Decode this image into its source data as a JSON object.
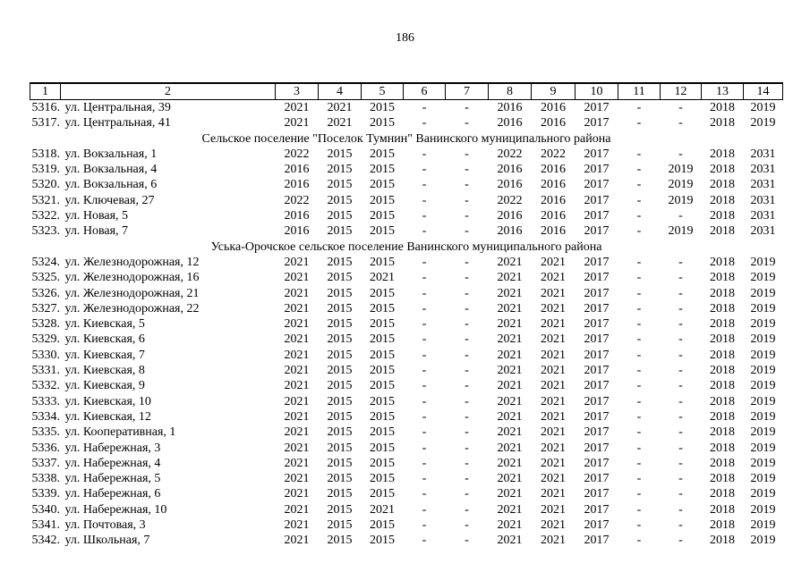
{
  "page": {
    "number": "186"
  },
  "table": {
    "header_cols": [
      "1",
      "2",
      "3",
      "4",
      "5",
      "6",
      "7",
      "8",
      "9",
      "10",
      "11",
      "12",
      "13",
      "14"
    ],
    "rows": [
      {
        "type": "data",
        "num": "5316.",
        "address": "ул. Центральная, 39",
        "values": [
          "2021",
          "2021",
          "2015",
          "-",
          "-",
          "2016",
          "2016",
          "2017",
          "-",
          "-",
          "2018",
          "2019"
        ]
      },
      {
        "type": "data",
        "num": "5317.",
        "address": "ул. Центральная, 41",
        "values": [
          "2021",
          "2021",
          "2015",
          "-",
          "-",
          "2016",
          "2016",
          "2017",
          "-",
          "-",
          "2018",
          "2019"
        ]
      },
      {
        "type": "section",
        "label": "Сельское поселение \"Поселок Тумнин\" Ванинского муниципального района"
      },
      {
        "type": "data",
        "num": "5318.",
        "address": "ул. Вокзальная, 1",
        "values": [
          "2022",
          "2015",
          "2015",
          "-",
          "-",
          "2022",
          "2022",
          "2017",
          "-",
          "-",
          "2018",
          "2031"
        ]
      },
      {
        "type": "data",
        "num": "5319.",
        "address": "ул. Вокзальная, 4",
        "values": [
          "2016",
          "2015",
          "2015",
          "-",
          "-",
          "2016",
          "2016",
          "2017",
          "-",
          "2019",
          "2018",
          "2031"
        ]
      },
      {
        "type": "data",
        "num": "5320.",
        "address": "ул. Вокзальная, 6",
        "values": [
          "2016",
          "2015",
          "2015",
          "-",
          "-",
          "2016",
          "2016",
          "2017",
          "-",
          "2019",
          "2018",
          "2031"
        ]
      },
      {
        "type": "data",
        "num": "5321.",
        "address": "ул. Ключевая, 27",
        "values": [
          "2022",
          "2015",
          "2015",
          "-",
          "-",
          "2022",
          "2016",
          "2017",
          "-",
          "2019",
          "2018",
          "2031"
        ]
      },
      {
        "type": "data",
        "num": "5322.",
        "address": "ул. Новая, 5",
        "values": [
          "2016",
          "2015",
          "2015",
          "-",
          "-",
          "2016",
          "2016",
          "2017",
          "-",
          "-",
          "2018",
          "2031"
        ]
      },
      {
        "type": "data",
        "num": "5323.",
        "address": "ул. Новая, 7",
        "values": [
          "2016",
          "2015",
          "2015",
          "-",
          "-",
          "2016",
          "2016",
          "2017",
          "-",
          "2019",
          "2018",
          "2031"
        ]
      },
      {
        "type": "section",
        "label": "Уська-Орочское сельское поселение Ванинского муниципального района"
      },
      {
        "type": "data",
        "num": "5324.",
        "address": "ул. Железнодорожная, 12",
        "values": [
          "2021",
          "2015",
          "2015",
          "-",
          "-",
          "2021",
          "2021",
          "2017",
          "-",
          "-",
          "2018",
          "2019"
        ]
      },
      {
        "type": "data",
        "num": "5325.",
        "address": "ул. Железнодорожная, 16",
        "values": [
          "2021",
          "2015",
          "2021",
          "-",
          "-",
          "2021",
          "2021",
          "2017",
          "-",
          "-",
          "2018",
          "2019"
        ]
      },
      {
        "type": "data",
        "num": "5326.",
        "address": "ул. Железнодорожная, 21",
        "values": [
          "2021",
          "2015",
          "2015",
          "-",
          "-",
          "2021",
          "2021",
          "2017",
          "-",
          "-",
          "2018",
          "2019"
        ]
      },
      {
        "type": "data",
        "num": "5327.",
        "address": "ул. Железнодорожная, 22",
        "values": [
          "2021",
          "2015",
          "2015",
          "-",
          "-",
          "2021",
          "2021",
          "2017",
          "-",
          "-",
          "2018",
          "2019"
        ]
      },
      {
        "type": "data",
        "num": "5328.",
        "address": "ул. Киевская, 5",
        "values": [
          "2021",
          "2015",
          "2015",
          "-",
          "-",
          "2021",
          "2021",
          "2017",
          "-",
          "-",
          "2018",
          "2019"
        ]
      },
      {
        "type": "data",
        "num": "5329.",
        "address": "ул. Киевская, 6",
        "values": [
          "2021",
          "2015",
          "2015",
          "-",
          "-",
          "2021",
          "2021",
          "2017",
          "-",
          "-",
          "2018",
          "2019"
        ]
      },
      {
        "type": "data",
        "num": "5330.",
        "address": "ул. Киевская, 7",
        "values": [
          "2021",
          "2015",
          "2015",
          "-",
          "-",
          "2021",
          "2021",
          "2017",
          "-",
          "-",
          "2018",
          "2019"
        ]
      },
      {
        "type": "data",
        "num": "5331.",
        "address": "ул. Киевская, 8",
        "values": [
          "2021",
          "2015",
          "2015",
          "-",
          "-",
          "2021",
          "2021",
          "2017",
          "-",
          "-",
          "2018",
          "2019"
        ]
      },
      {
        "type": "data",
        "num": "5332.",
        "address": "ул. Киевская, 9",
        "values": [
          "2021",
          "2015",
          "2015",
          "-",
          "-",
          "2021",
          "2021",
          "2017",
          "-",
          "-",
          "2018",
          "2019"
        ]
      },
      {
        "type": "data",
        "num": "5333.",
        "address": "ул. Киевская, 10",
        "values": [
          "2021",
          "2015",
          "2015",
          "-",
          "-",
          "2021",
          "2021",
          "2017",
          "-",
          "-",
          "2018",
          "2019"
        ]
      },
      {
        "type": "data",
        "num": "5334.",
        "address": "ул. Киевская, 12",
        "values": [
          "2021",
          "2015",
          "2015",
          "-",
          "-",
          "2021",
          "2021",
          "2017",
          "-",
          "-",
          "2018",
          "2019"
        ]
      },
      {
        "type": "data",
        "num": "5335.",
        "address": "ул. Кооперативная, 1",
        "values": [
          "2021",
          "2015",
          "2015",
          "-",
          "-",
          "2021",
          "2021",
          "2017",
          "-",
          "-",
          "2018",
          "2019"
        ]
      },
      {
        "type": "data",
        "num": "5336.",
        "address": "ул. Набережная, 3",
        "values": [
          "2021",
          "2015",
          "2015",
          "-",
          "-",
          "2021",
          "2021",
          "2017",
          "-",
          "-",
          "2018",
          "2019"
        ]
      },
      {
        "type": "data",
        "num": "5337.",
        "address": "ул. Набережная, 4",
        "values": [
          "2021",
          "2015",
          "2015",
          "-",
          "-",
          "2021",
          "2021",
          "2017",
          "-",
          "-",
          "2018",
          "2019"
        ]
      },
      {
        "type": "data",
        "num": "5338.",
        "address": "ул. Набережная, 5",
        "values": [
          "2021",
          "2015",
          "2015",
          "-",
          "-",
          "2021",
          "2021",
          "2017",
          "-",
          "-",
          "2018",
          "2019"
        ]
      },
      {
        "type": "data",
        "num": "5339.",
        "address": "ул. Набережная, 6",
        "values": [
          "2021",
          "2015",
          "2015",
          "-",
          "-",
          "2021",
          "2021",
          "2017",
          "-",
          "-",
          "2018",
          "2019"
        ]
      },
      {
        "type": "data",
        "num": "5340.",
        "address": "ул. Набережная, 10",
        "values": [
          "2021",
          "2015",
          "2021",
          "-",
          "-",
          "2021",
          "2021",
          "2017",
          "-",
          "-",
          "2018",
          "2019"
        ]
      },
      {
        "type": "data",
        "num": "5341.",
        "address": "ул. Почтовая, 3",
        "values": [
          "2021",
          "2015",
          "2015",
          "-",
          "-",
          "2021",
          "2021",
          "2017",
          "-",
          "-",
          "2018",
          "2019"
        ]
      },
      {
        "type": "data",
        "num": "5342.",
        "address": "ул. Школьная, 7",
        "values": [
          "2021",
          "2015",
          "2015",
          "-",
          "-",
          "2021",
          "2021",
          "2017",
          "-",
          "-",
          "2018",
          "2019"
        ]
      }
    ]
  }
}
